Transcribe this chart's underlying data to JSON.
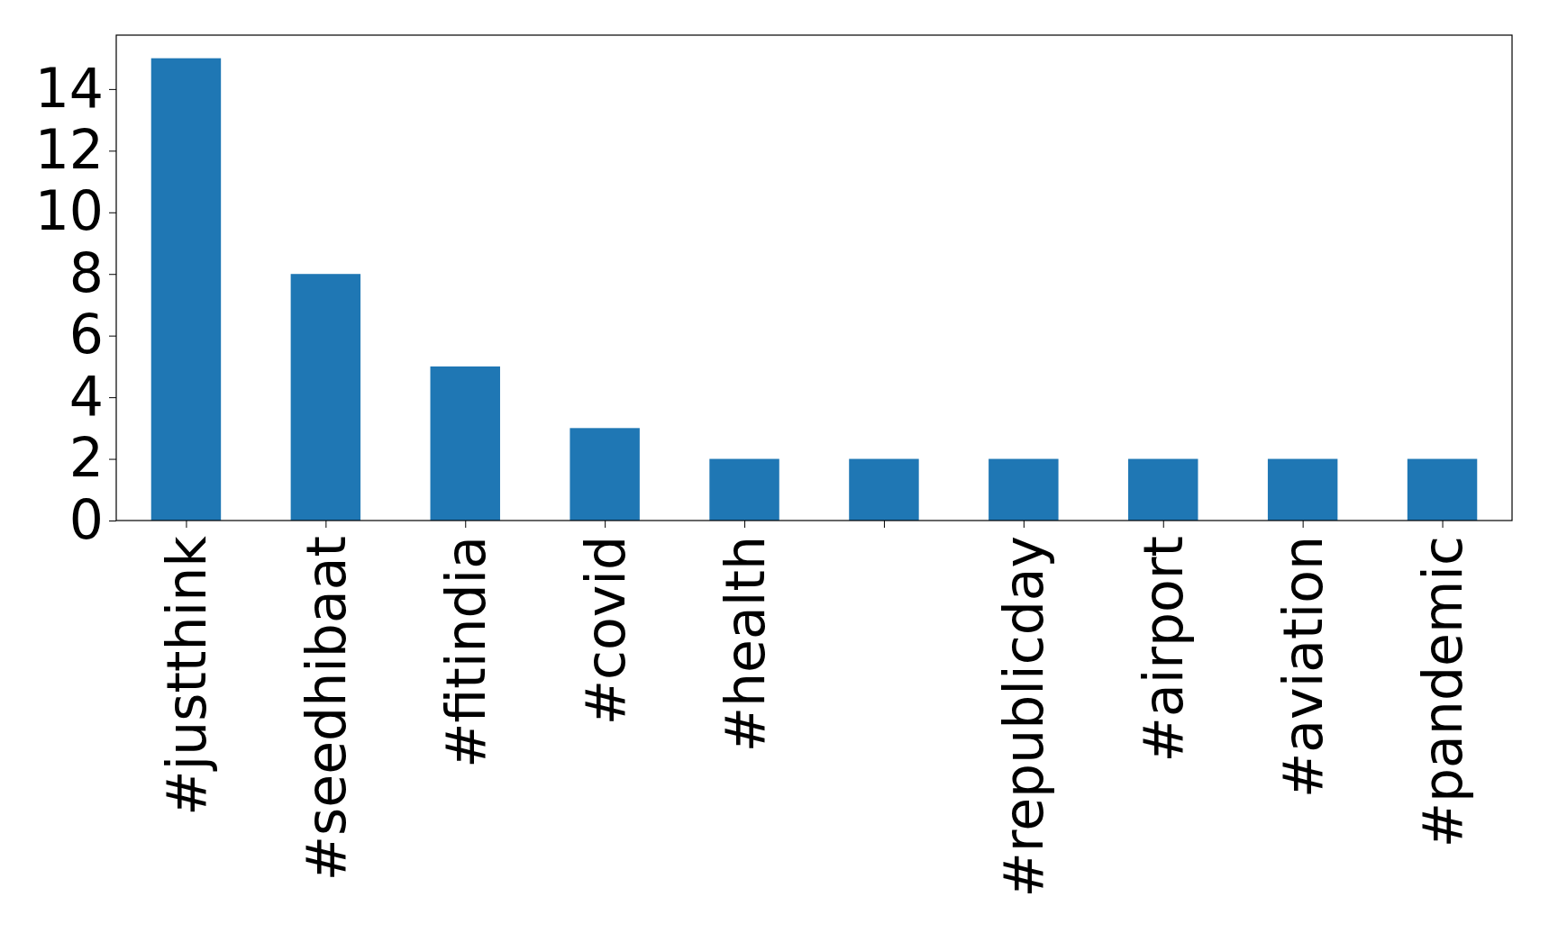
{
  "chart_data": {
    "type": "bar",
    "categories": [
      "#justthink",
      "#seedhibaat",
      "#fitindia",
      "#covid",
      "#health",
      null,
      "#republicday",
      "#airport",
      "#aviation",
      "#pandemic"
    ],
    "values": [
      15,
      8,
      5,
      3,
      2,
      2,
      2,
      2,
      2,
      2
    ],
    "color": "#1f77b4",
    "ylim": [
      0,
      15.75
    ],
    "yticks": [
      0,
      2,
      4,
      6,
      8,
      10,
      12,
      14
    ],
    "grid": false
  }
}
